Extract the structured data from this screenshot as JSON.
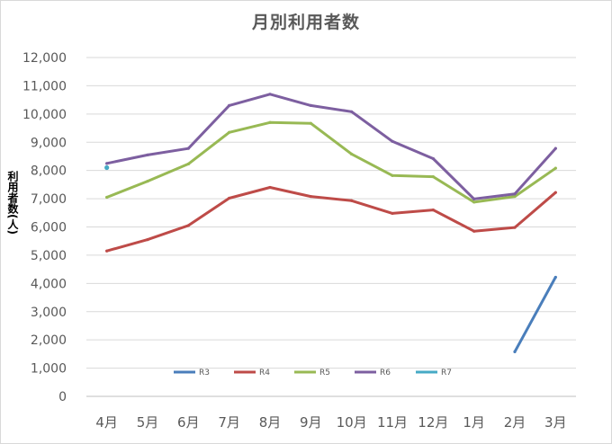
{
  "chart_data": {
    "type": "line",
    "title": "月別利用者数",
    "ylabel": "利用者数(人)",
    "xlabel": "",
    "categories": [
      "4月",
      "5月",
      "6月",
      "7月",
      "8月",
      "9月",
      "10月",
      "11月",
      "12月",
      "1月",
      "2月",
      "3月"
    ],
    "ylim": [
      0,
      12000
    ],
    "yticks": [
      0,
      1000,
      2000,
      3000,
      4000,
      5000,
      6000,
      7000,
      8000,
      9000,
      10000,
      11000,
      12000
    ],
    "ytick_labels": [
      "0",
      "1,000",
      "2,000",
      "3,000",
      "4,000",
      "5,000",
      "6,000",
      "7,000",
      "8,000",
      "9,000",
      "10,000",
      "11,000",
      "12,000"
    ],
    "grid": true,
    "legend_position": "inside-bottom",
    "series": [
      {
        "name": "R3",
        "color": "#4a7ebb",
        "values": [
          null,
          null,
          null,
          null,
          null,
          null,
          null,
          null,
          null,
          null,
          1580,
          4220
        ]
      },
      {
        "name": "R4",
        "color": "#be4b48",
        "values": [
          5150,
          5550,
          6050,
          7020,
          7400,
          7080,
          6930,
          6480,
          6600,
          5850,
          5980,
          7220
        ]
      },
      {
        "name": "R5",
        "color": "#98b954",
        "values": [
          7050,
          7620,
          8230,
          9350,
          9700,
          9670,
          8580,
          7820,
          7780,
          6880,
          7080,
          8080
        ]
      },
      {
        "name": "R6",
        "color": "#7d5fa0",
        "values": [
          8250,
          8550,
          8780,
          10300,
          10700,
          10300,
          10080,
          9030,
          8420,
          6990,
          7170,
          8780
        ]
      },
      {
        "name": "R7",
        "color": "#46aac5",
        "values": [
          8100,
          null,
          null,
          null,
          null,
          null,
          null,
          null,
          null,
          null,
          null,
          null
        ]
      }
    ]
  }
}
